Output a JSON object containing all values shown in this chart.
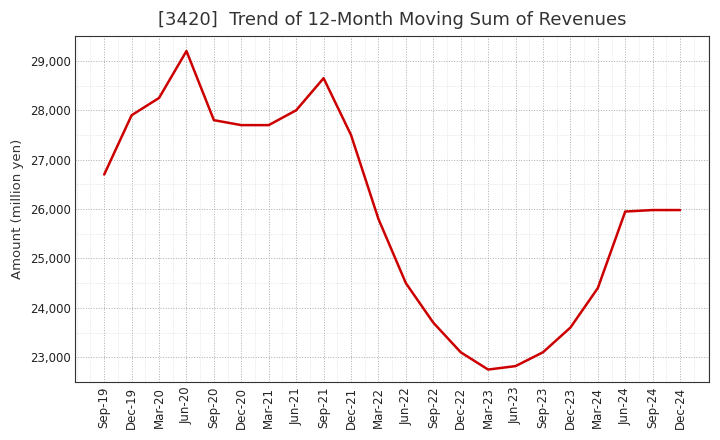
{
  "title": "[3420]  Trend of 12-Month Moving Sum of Revenues",
  "ylabel": "Amount (million yen)",
  "line_color": "#CC0000",
  "background_color": "#ffffff",
  "plot_bg_color": "#ffffff",
  "grid_color": "#999999",
  "title_color": "#333333",
  "labels": [
    "Sep-19",
    "Dec-19",
    "Mar-20",
    "Jun-20",
    "Sep-20",
    "Dec-20",
    "Mar-21",
    "Jun-21",
    "Sep-21",
    "Dec-21",
    "Mar-22",
    "Jun-22",
    "Sep-22",
    "Dec-22",
    "Mar-23",
    "Jun-23",
    "Sep-23",
    "Dec-23",
    "Mar-24",
    "Jun-24",
    "Sep-24",
    "Dec-24"
  ],
  "values": [
    26700,
    27900,
    28250,
    29200,
    27800,
    27700,
    27700,
    28000,
    28650,
    27500,
    25800,
    24500,
    23700,
    23100,
    22750,
    22820,
    23100,
    23600,
    24400,
    25950,
    25980,
    25980
  ],
  "ylim": [
    22500,
    29500
  ],
  "yticks": [
    23000,
    24000,
    25000,
    26000,
    27000,
    28000,
    29000
  ],
  "title_fontsize": 13,
  "axis_fontsize": 9.5,
  "tick_fontsize": 8.5
}
